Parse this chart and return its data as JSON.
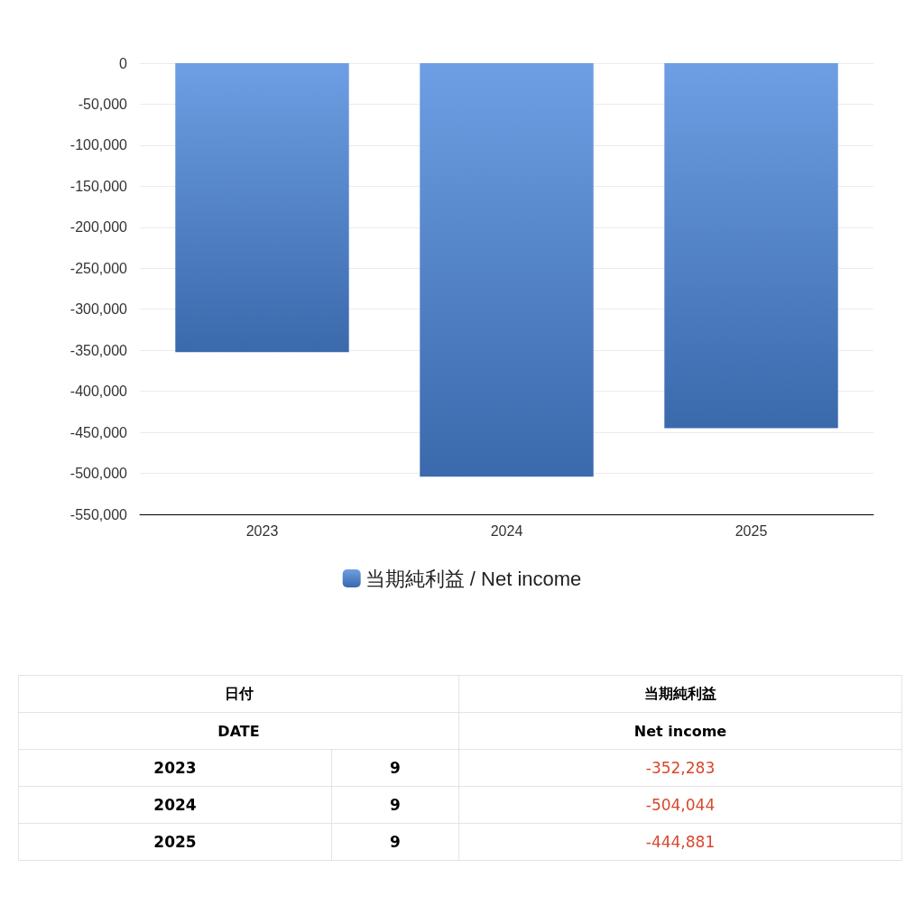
{
  "chart_data": {
    "type": "bar",
    "categories": [
      "2023",
      "2024",
      "2025"
    ],
    "series": [
      {
        "name": "当期純利益 / Net income",
        "color": "#4a86dc",
        "values": [
          -352283,
          -504044,
          -444881
        ]
      }
    ],
    "ylim": [
      -550000,
      0
    ],
    "yticks": [
      {
        "value": 0,
        "label": "0"
      },
      {
        "value": -50000,
        "label": "-50,000"
      },
      {
        "value": -100000,
        "label": "-100,000"
      },
      {
        "value": -150000,
        "label": "-150,000"
      },
      {
        "value": -200000,
        "label": "-200,000"
      },
      {
        "value": -250000,
        "label": "-250,000"
      },
      {
        "value": -300000,
        "label": "-300,000"
      },
      {
        "value": -350000,
        "label": "-350,000"
      },
      {
        "value": -400000,
        "label": "-400,000"
      },
      {
        "value": -450000,
        "label": "-450,000"
      },
      {
        "value": -500000,
        "label": "-500,000"
      },
      {
        "value": -550000,
        "label": "-550,000"
      }
    ],
    "grid": "y",
    "legend": "bottom",
    "annotations": [
      "日付",
      "当期純利益",
      "DATE",
      "Net income",
      "9",
      "9",
      "9",
      "-352,283",
      "-504,044",
      "-444,881"
    ]
  }
}
